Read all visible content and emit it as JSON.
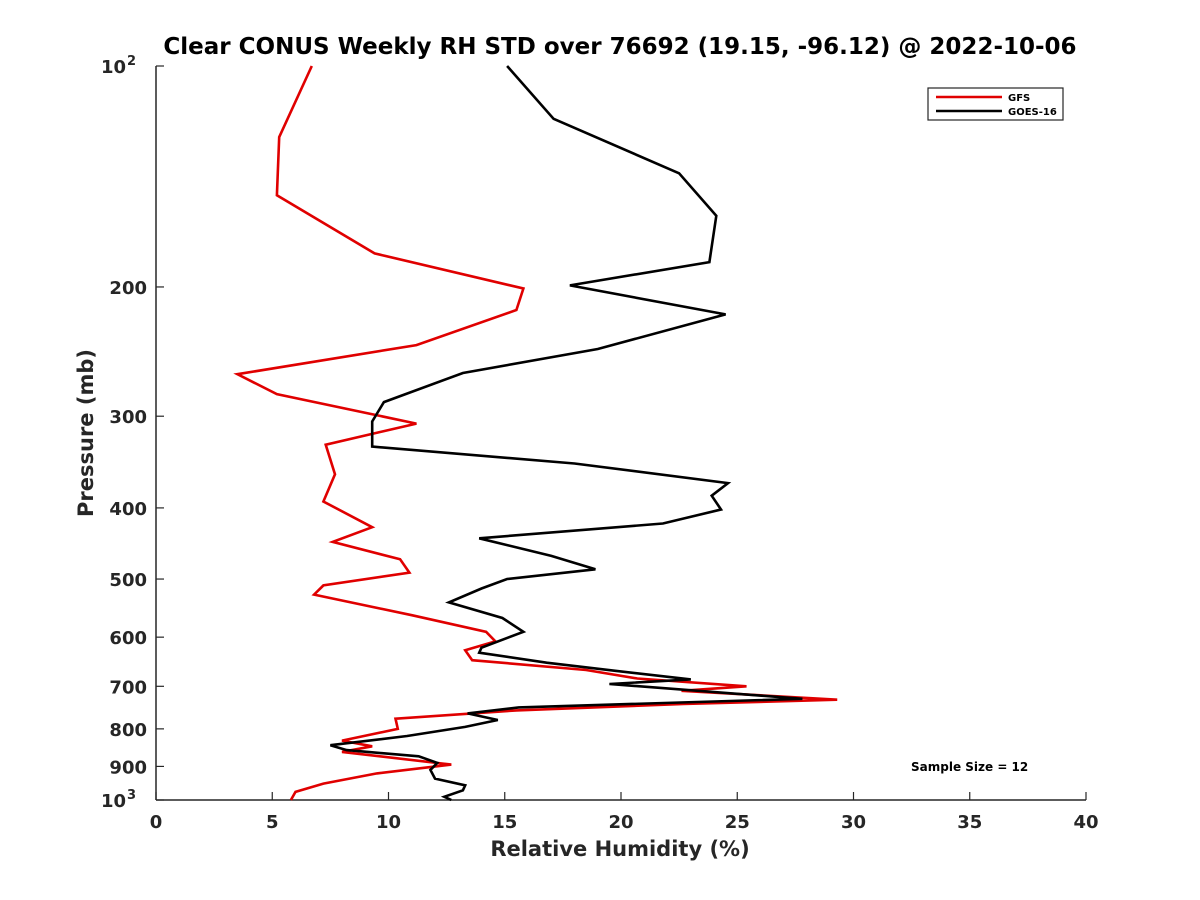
{
  "chart_data": {
    "type": "line",
    "title": "Clear CONUS Weekly RH STD over 76692 (19.15, -96.12) @ 2022-10-06",
    "xlabel": "Relative Humidity (%)",
    "ylabel": "Pressure (mb)",
    "xlim": [
      0,
      40
    ],
    "ylim": [
      100,
      1000
    ],
    "yscale": "log",
    "yreversed": true,
    "x_ticks": [
      "0",
      "5",
      "10",
      "15",
      "20",
      "25",
      "30",
      "35",
      "40"
    ],
    "y_ticks": [
      {
        "value": 100,
        "base": "10",
        "exp": "2"
      },
      {
        "value": 200,
        "label": "200"
      },
      {
        "value": 300,
        "label": "300"
      },
      {
        "value": 400,
        "label": "400"
      },
      {
        "value": 500,
        "label": "500"
      },
      {
        "value": 600,
        "label": "600"
      },
      {
        "value": 700,
        "label": "700"
      },
      {
        "value": 800,
        "label": "800"
      },
      {
        "value": 900,
        "label": "900"
      },
      {
        "value": 1000,
        "base": "10",
        "exp": "3"
      }
    ],
    "legend_position": "top-right",
    "annotation": "Sample Size = 12",
    "series": [
      {
        "name": "GFS",
        "color": "#e00000",
        "points": [
          [
            6.7,
            100
          ],
          [
            5.3,
            125
          ],
          [
            5.2,
            150
          ],
          [
            9.4,
            180
          ],
          [
            15.8,
            201
          ],
          [
            15.5,
            215
          ],
          [
            11.2,
            240
          ],
          [
            3.5,
            263
          ],
          [
            5.2,
            280
          ],
          [
            11.2,
            307
          ],
          [
            7.3,
            328
          ],
          [
            7.7,
            360
          ],
          [
            7.2,
            392
          ],
          [
            9.3,
            425
          ],
          [
            7.6,
            445
          ],
          [
            10.5,
            470
          ],
          [
            10.9,
            490
          ],
          [
            7.2,
            510
          ],
          [
            6.8,
            525
          ],
          [
            11.0,
            560
          ],
          [
            14.2,
            590
          ],
          [
            14.6,
            608
          ],
          [
            13.3,
            625
          ],
          [
            13.6,
            645
          ],
          [
            18.5,
            665
          ],
          [
            20.7,
            683
          ],
          [
            25.4,
            700
          ],
          [
            22.6,
            710
          ],
          [
            29.3,
            730
          ],
          [
            22.7,
            740
          ],
          [
            15.5,
            755
          ],
          [
            10.3,
            775
          ],
          [
            10.4,
            800
          ],
          [
            8.0,
            830
          ],
          [
            9.3,
            845
          ],
          [
            8.0,
            860
          ],
          [
            12.7,
            895
          ],
          [
            9.5,
            920
          ],
          [
            7.2,
            950
          ],
          [
            6.0,
            975
          ],
          [
            5.8,
            1000
          ]
        ]
      },
      {
        "name": "GOES-16",
        "color": "#000000",
        "points": [
          [
            15.1,
            100
          ],
          [
            17.1,
            118
          ],
          [
            22.5,
            140
          ],
          [
            24.1,
            160
          ],
          [
            23.8,
            185
          ],
          [
            17.8,
            199
          ],
          [
            24.5,
            218
          ],
          [
            19.0,
            243
          ],
          [
            13.2,
            262
          ],
          [
            9.8,
            287
          ],
          [
            9.3,
            305
          ],
          [
            9.3,
            330
          ],
          [
            18.0,
            348
          ],
          [
            24.6,
            370
          ],
          [
            23.9,
            385
          ],
          [
            24.3,
            402
          ],
          [
            21.8,
            420
          ],
          [
            13.9,
            440
          ],
          [
            17.0,
            465
          ],
          [
            18.9,
            485
          ],
          [
            15.1,
            500
          ],
          [
            14.0,
            515
          ],
          [
            12.6,
            538
          ],
          [
            14.9,
            565
          ],
          [
            15.8,
            590
          ],
          [
            14.0,
            620
          ],
          [
            13.9,
            630
          ],
          [
            16.8,
            650
          ],
          [
            19.8,
            667
          ],
          [
            23.0,
            685
          ],
          [
            19.5,
            695
          ],
          [
            27.8,
            728
          ],
          [
            15.6,
            748
          ],
          [
            13.4,
            762
          ],
          [
            14.7,
            778
          ],
          [
            13.3,
            795
          ],
          [
            10.8,
            818
          ],
          [
            7.5,
            842
          ],
          [
            8.2,
            855
          ],
          [
            11.3,
            872
          ],
          [
            12.1,
            890
          ],
          [
            11.8,
            910
          ],
          [
            12.0,
            935
          ],
          [
            13.3,
            955
          ],
          [
            13.2,
            970
          ],
          [
            12.4,
            990
          ],
          [
            12.7,
            1000
          ]
        ]
      }
    ]
  }
}
